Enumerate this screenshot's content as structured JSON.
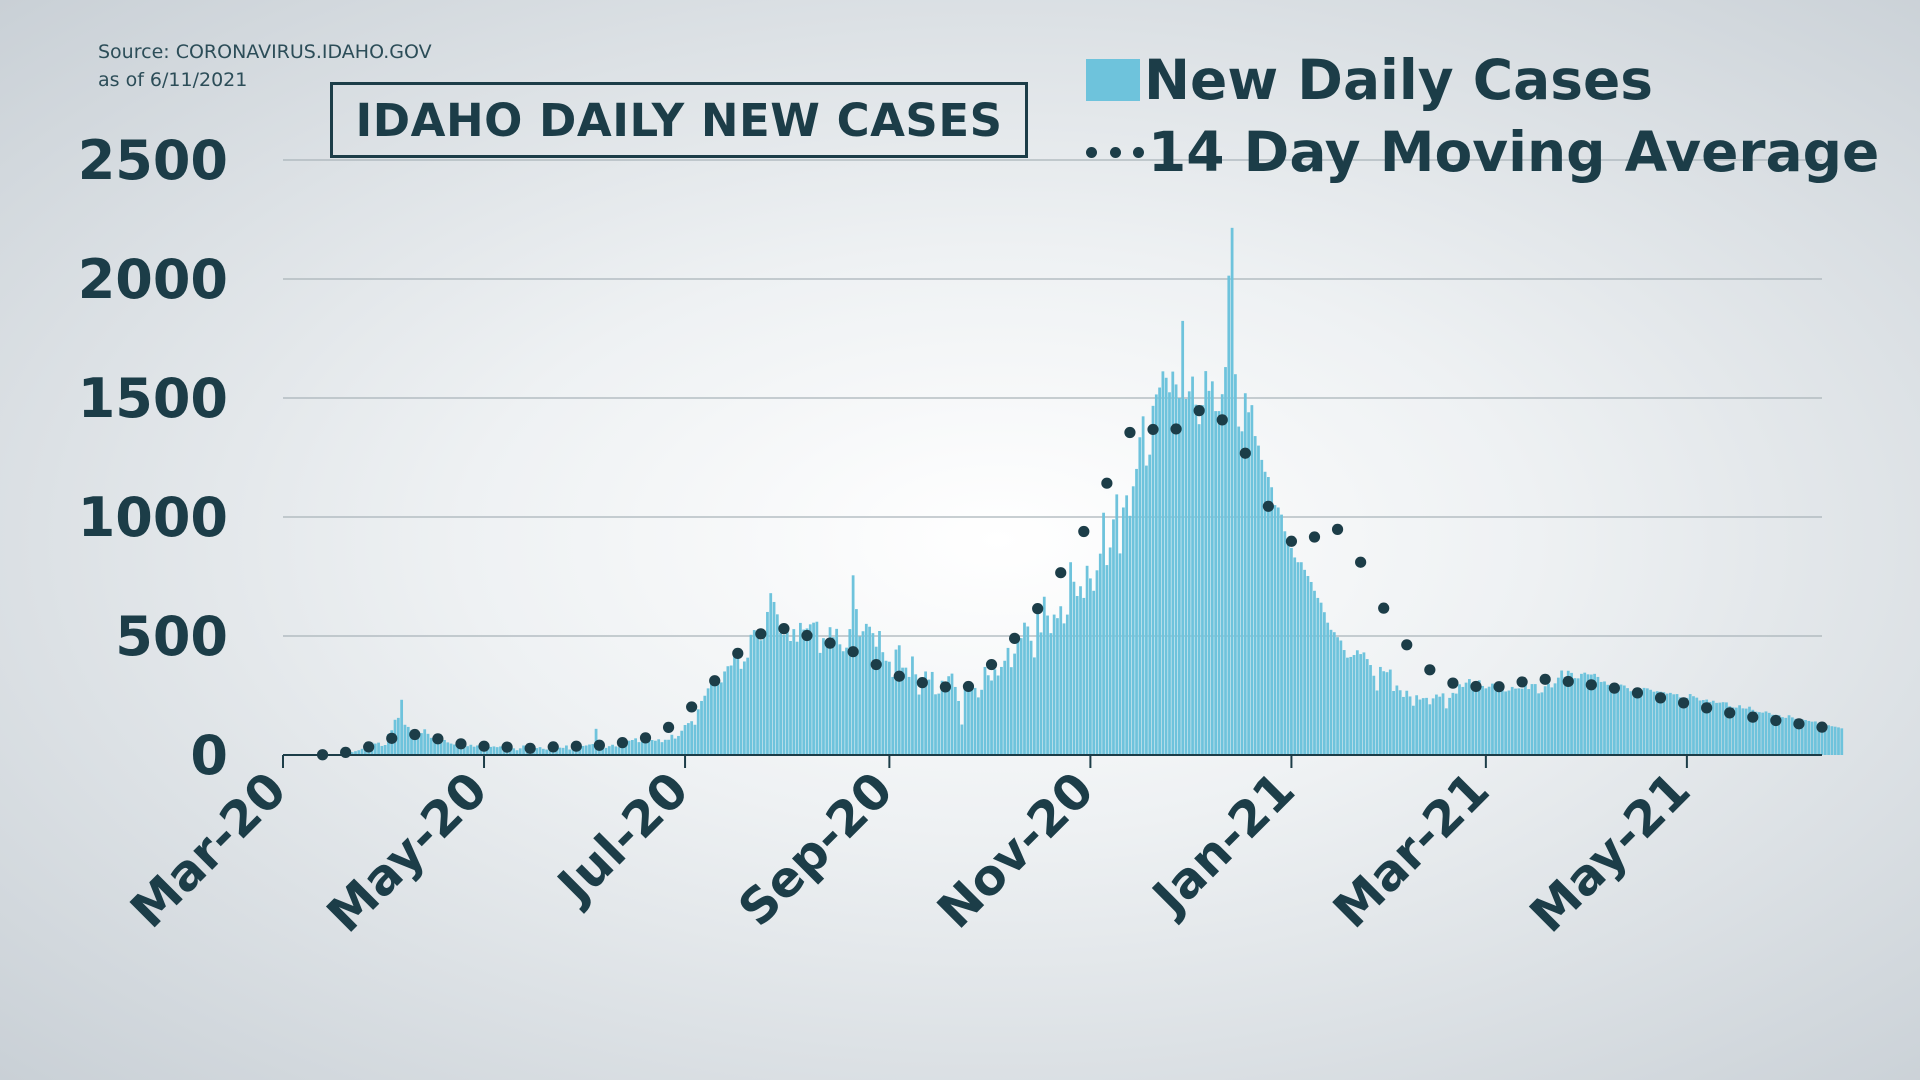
{
  "source": {
    "line1": "Source: CORONAVIRUS.IDAHO.GOV",
    "line2": "as of 6/11/2021"
  },
  "legend": {
    "bars_label": "New Daily Cases",
    "line_label": "14 Day Moving Average"
  },
  "colors": {
    "bars": "#6ec3dc",
    "average": "#1c3d48",
    "text": "#1c3d48",
    "grid": "#a9b3b9",
    "axis": "#1c3d48"
  },
  "chart_data": {
    "type": "bar",
    "title": "IDAHO DAILY NEW CASES",
    "xlabel": "",
    "ylabel": "",
    "ylim": [
      0,
      2500
    ],
    "yticks": [
      0,
      500,
      1000,
      1500,
      2000,
      2500
    ],
    "xlim": [
      "2020-03-01",
      "2021-06-11"
    ],
    "xticks": [
      {
        "date": "2020-03-01",
        "label": "Mar-20"
      },
      {
        "date": "2020-05-01",
        "label": "May-20"
      },
      {
        "date": "2020-07-01",
        "label": "Jul-20"
      },
      {
        "date": "2020-09-01",
        "label": "Sep-20"
      },
      {
        "date": "2020-11-01",
        "label": "Nov-20"
      },
      {
        "date": "2021-01-01",
        "label": "Jan-21"
      },
      {
        "date": "2021-03-01",
        "label": "Mar-21"
      },
      {
        "date": "2021-05-01",
        "label": "May-21"
      }
    ],
    "grid": true,
    "legend_position": "top-right",
    "series": [
      {
        "name": "New Daily Cases",
        "type": "bar",
        "start_date": "2020-03-13",
        "step_days": 1,
        "values": [
          1,
          1,
          2,
          2,
          3,
          4,
          5,
          7,
          10,
          12,
          16,
          20,
          26,
          38,
          43,
          52,
          48,
          52,
          38,
          42,
          88,
          104,
          148,
          156,
          232,
          127,
          118,
          104,
          94,
          74,
          92,
          108,
          89,
          72,
          58,
          66,
          72,
          63,
          53,
          48,
          44,
          47,
          53,
          40,
          37,
          43,
          35,
          40,
          32,
          31,
          32,
          34,
          36,
          33,
          36,
          27,
          35,
          31,
          28,
          20,
          28,
          40,
          40,
          46,
          31,
          29,
          33,
          26,
          23,
          29,
          37,
          27,
          31,
          30,
          40,
          23,
          24,
          36,
          29,
          38,
          40,
          44,
          46,
          110,
          50,
          46,
          30,
          37,
          43,
          36,
          33,
          30,
          42,
          60,
          63,
          70,
          54,
          56,
          56,
          74,
          63,
          60,
          66,
          54,
          64,
          64,
          85,
          69,
          80,
          102,
          126,
          134,
          142,
          127,
          192,
          227,
          249,
          280,
          315,
          332,
          308,
          305,
          351,
          373,
          376,
          418,
          422,
          362,
          393,
          409,
          505,
          525,
          506,
          482,
          519,
          601,
          680,
          643,
          591,
          513,
          505,
          544,
          479,
          529,
          476,
          555,
          527,
          532,
          549,
          556,
          560,
          429,
          491,
          458,
          537,
          495,
          530,
          465,
          436,
          451,
          529,
          755,
          613,
          498,
          520,
          551,
          539,
          512,
          455,
          521,
          432,
          396,
          392,
          328,
          443,
          461,
          367,
          367,
          328,
          414,
          339,
          254,
          305,
          351,
          317,
          349,
          255,
          258,
          312,
          290,
          331,
          342,
          286,
          227,
          128,
          281,
          308,
          302,
          282,
          242,
          274,
          370,
          335,
          313,
          360,
          334,
          370,
          396,
          450,
          369,
          426,
          503,
          491,
          556,
          540,
          480,
          410,
          606,
          515,
          665,
          586,
          512,
          590,
          575,
          625,
          553,
          590,
          810,
          728,
          668,
          709,
          660,
          795,
          742,
          690,
          776,
          846,
          1018,
          798,
          872,
          990,
          1095,
          847,
          1040,
          1091,
          1005,
          1129,
          1202,
          1335,
          1423,
          1216,
          1262,
          1467,
          1515,
          1544,
          1612,
          1585,
          1524,
          1611,
          1557,
          1500,
          1824,
          1496,
          1528,
          1590,
          1472,
          1390,
          1470,
          1613,
          1530,
          1570,
          1445,
          1445,
          1516,
          1630,
          2014,
          2215,
          1600,
          1380,
          1360,
          1520,
          1440,
          1470,
          1340,
          1300,
          1240,
          1190,
          1168,
          1125,
          1050,
          1040,
          1010,
          940,
          900,
          870,
          830,
          810,
          810,
          778,
          752,
          727,
          690,
          660,
          640,
          600,
          556,
          526,
          516,
          495,
          481,
          441,
          409,
          412,
          420,
          440,
          424,
          431,
          403,
          378,
          333,
          271,
          370,
          352,
          348,
          359,
          269,
          292,
          272,
          244,
          270,
          246,
          207,
          251,
          233,
          239,
          240,
          213,
          238,
          254,
          245,
          259,
          196,
          240,
          261,
          258,
          297,
          286,
          304,
          319,
          296,
          275,
          314,
          290,
          280,
          287,
          300,
          296,
          302,
          282,
          267,
          271,
          286,
          279,
          280,
          279,
          304,
          277,
          298,
          298,
          259,
          263,
          289,
          300,
          284,
          301,
          325,
          355,
          328,
          354,
          345,
          323,
          322,
          341,
          346,
          339,
          338,
          341,
          328,
          307,
          309,
          295,
          279,
          283,
          294,
          296,
          292,
          281,
          268,
          269,
          263,
          259,
          282,
          280,
          274,
          266,
          268,
          266,
          264,
          258,
          261,
          255,
          256,
          242,
          231,
          240,
          256,
          247,
          241,
          229,
          231,
          233,
          223,
          228,
          219,
          220,
          222,
          221,
          205,
          200,
          199,
          209,
          196,
          195,
          203,
          190,
          182,
          180,
          178,
          183,
          177,
          169,
          169,
          167,
          159,
          156,
          167,
          158,
          152,
          149,
          150,
          147,
          143,
          140,
          141,
          133,
          137,
          128,
          125,
          121,
          119,
          116,
          112
        ]
      },
      {
        "name": "14 Day Moving Average",
        "type": "line",
        "style": "dotted",
        "start_date": "2020-03-13",
        "step_days": 1,
        "values": [
          1,
          2,
          3,
          3,
          4,
          6,
          8,
          11,
          14,
          17,
          20,
          23,
          27,
          30,
          34,
          39,
          45,
          51,
          56,
          61,
          67,
          70,
          74,
          79,
          83,
          87,
          88,
          87,
          86,
          85,
          83,
          81,
          79,
          76,
          72,
          68,
          65,
          62,
          58,
          55,
          52,
          49,
          47,
          45,
          43,
          41,
          39,
          38,
          37,
          37,
          36,
          36,
          35,
          35,
          34,
          34,
          33,
          33,
          32,
          31,
          30,
          29,
          28,
          28,
          28,
          29,
          30,
          31,
          32,
          33,
          34,
          35,
          35,
          36,
          36,
          36,
          37,
          37,
          37,
          38,
          38,
          38,
          39,
          40,
          41,
          42,
          43,
          44,
          46,
          48,
          50,
          52,
          54,
          57,
          59,
          62,
          64,
          68,
          72,
          76,
          81,
          86,
          92,
          99,
          107,
          116,
          126,
          137,
          149,
          161,
          174,
          188,
          202,
          217,
          232,
          248,
          264,
          280,
          296,
          312,
          329,
          346,
          363,
          379,
          396,
          412,
          427,
          441,
          454,
          467,
          479,
          490,
          500,
          509,
          517,
          523,
          528,
          531,
          533,
          533,
          531,
          528,
          525,
          521,
          517,
          512,
          507,
          502,
          497,
          492,
          487,
          482,
          478,
          474,
          470,
          466,
          461,
          456,
          451,
          446,
          441,
          434,
          427,
          420,
          412,
          404,
          396,
          388,
          380,
          372,
          364,
          357,
          350,
          343,
          337,
          331,
          326,
          321,
          317,
          313,
          310,
          307,
          304,
          302,
          300,
          298,
          296,
          293,
          290,
          286,
          283,
          280,
          278,
          277,
          278,
          282,
          288,
          297,
          308,
          321,
          335,
          350,
          365,
          380,
          395,
          410,
          425,
          441,
          457,
          473,
          490,
          507,
          524,
          541,
          559,
          577,
          596,
          615,
          635,
          656,
          677,
          698,
          720,
          743,
          766,
          790,
          814,
          839,
          864,
          889,
          914,
          939,
          965,
          992,
          1020,
          1049,
          1079,
          1110,
          1142,
          1175,
          1209,
          1244,
          1280,
          1310,
          1335,
          1355,
          1370,
          1380,
          1385,
          1386,
          1383,
          1376,
          1368,
          1362,
          1358,
          1355,
          1354,
          1356,
          1362,
          1370,
          1380,
          1392,
          1405,
          1418,
          1430,
          1440,
          1447,
          1450,
          1448,
          1443,
          1437,
          1430,
          1420,
          1408,
          1395,
          1380,
          1362,
          1342,
          1320,
          1295,
          1268,
          1239,
          1208,
          1176,
          1143,
          1110,
          1077,
          1045,
          1014,
          985,
          958,
          935,
          917,
          905,
          898,
          895,
          893,
          892,
          893,
          897,
          905,
          916,
          928,
          940,
          950,
          957,
          960,
          957,
          948,
          935,
          920,
          902,
          882,
          860,
          836,
          810,
          782,
          754,
          726,
          698,
          670,
          643,
          617,
          592,
          568,
          545,
          523,
          502,
          482,
          463,
          445,
          428,
          412,
          397,
          383,
          370,
          358,
          347,
          337,
          328,
          320,
          313,
          307,
          302,
          298,
          295,
          293,
          291,
          290,
          289,
          288,
          287,
          286,
          285,
          284,
          284,
          285,
          287,
          289,
          292,
          295,
          298,
          301,
          304,
          307,
          310,
          312,
          314,
          316,
          317,
          318,
          318,
          318,
          317,
          316,
          315,
          313,
          311,
          309,
          307,
          305,
          303,
          301,
          299,
          297,
          295,
          293,
          291,
          289,
          287,
          285,
          283,
          281,
          279,
          276,
          273,
          270,
          267,
          264,
          261,
          258,
          255,
          252,
          249,
          246,
          243,
          240,
          237,
          234,
          231,
          228,
          225,
          222,
          219,
          216,
          213,
          210,
          207,
          204,
          201,
          198,
          195,
          192,
          189,
          186,
          183,
          180,
          177,
          174,
          171,
          168,
          165,
          163,
          161,
          159,
          157,
          155,
          153,
          151,
          149,
          147,
          145,
          143,
          141,
          139,
          137,
          135,
          133,
          131,
          129,
          127,
          125,
          123,
          121,
          119,
          117,
          115
        ]
      }
    ]
  }
}
